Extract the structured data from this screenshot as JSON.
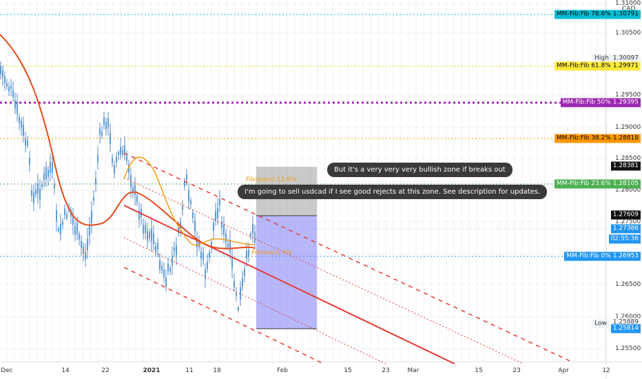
{
  "price_axis": {
    "currency": "CAD",
    "ticks": [
      "1.31000",
      "1.30500",
      "1.29500",
      "1.29000",
      "1.28500",
      "1.28000",
      "1.27500",
      "1.26500",
      "1.26000",
      "1.25500"
    ]
  },
  "date_axis": [
    "Dec",
    "14",
    "22",
    "2021",
    "11",
    "18",
    "Feb",
    "15",
    "23",
    "Mar",
    "15",
    "23",
    "Apr",
    "12"
  ],
  "fib_levels": [
    {
      "label": "MM-Fib:Fib 78.6%",
      "price": "1.30791"
    },
    {
      "label": "MM-Fib:Fib 61.8%",
      "price": "1.29971"
    },
    {
      "label": "MM-Fib:Fib 50%",
      "price": "1.29395"
    },
    {
      "label": "MM-Fib:Fib 38.2%",
      "price": "1.28818"
    },
    {
      "label": "MM-Fib:Fib 23.6%",
      "price": "1.28105"
    },
    {
      "label": "MM-Fib:Fib 0%",
      "price": "1.26953"
    }
  ],
  "markers": {
    "high_label": "High",
    "high": "1.30097",
    "target": "1.28381",
    "entry": "1.27609",
    "last_price": "1.27386",
    "countdown": "02:55:36",
    "low_label": "Low",
    "low_prev": "1.25889",
    "low": "1.25814"
  },
  "chart_labels": {
    "fib_top": "Fibonacci 23.6%",
    "fib_bottom": "Fibonacci 0%"
  },
  "annotations": [
    "But it's a very very very bullish zone if breaks out",
    "I'm going to sell usdcad if I see good rejects at this zone. See description for updates."
  ]
}
